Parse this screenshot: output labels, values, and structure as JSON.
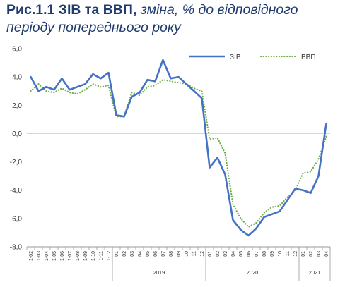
{
  "title": {
    "bold": "Рис.1.1 ЗІВ та ВВП,",
    "italic": " зміна, % до відповідного періоду попереднього року"
  },
  "colors": {
    "ziv": "#4472c4",
    "gdp": "#70ad47"
  },
  "chart_data": {
    "type": "line",
    "ylim": [
      -8,
      6
    ],
    "yticks": [
      "6,0",
      "4,0",
      "2,0",
      "0,0",
      "-2,0",
      "-4,0",
      "-6,0",
      "-8,0"
    ],
    "ytick_values": [
      6,
      4,
      2,
      0,
      -2,
      -4,
      -6,
      -8
    ],
    "grid": false,
    "legend": "top-right",
    "x": [
      "1-02",
      "1-03",
      "1-04",
      "1-05",
      "1-06",
      "1-07",
      "1-08",
      "1-09",
      "1-10",
      "1-11",
      "1-12",
      "01",
      "02",
      "03",
      "04",
      "05",
      "06",
      "07",
      "08",
      "09",
      "10",
      "11",
      "12",
      "01",
      "02",
      "03",
      "04",
      "05",
      "06",
      "07",
      "08",
      "09",
      "10",
      "11",
      "12",
      "01",
      "02",
      "03",
      "04"
    ],
    "x_groups": [
      {
        "label": "",
        "count": 11
      },
      {
        "label": "2019",
        "count": 12
      },
      {
        "label": "2020",
        "count": 12
      },
      {
        "label": "2021",
        "count": 4
      }
    ],
    "series": [
      {
        "name": "ЗІВ",
        "style": "solid",
        "values": [
          4.0,
          3.0,
          3.3,
          3.1,
          3.9,
          3.1,
          3.3,
          3.5,
          4.2,
          3.9,
          4.3,
          1.3,
          1.2,
          2.6,
          2.9,
          3.8,
          3.7,
          5.2,
          3.9,
          4.0,
          3.5,
          3.0,
          2.5,
          -2.4,
          -1.7,
          -2.9,
          -6.1,
          -6.8,
          -7.2,
          -6.7,
          -5.9,
          -5.7,
          -5.5,
          -4.7,
          -3.9,
          -4.0,
          -4.2,
          -3.0,
          0.7
        ]
      },
      {
        "name": "ВВП",
        "style": "dotted",
        "values": [
          3.0,
          3.5,
          3.0,
          2.9,
          3.2,
          2.9,
          2.8,
          3.1,
          3.5,
          3.3,
          3.4,
          1.2,
          1.2,
          2.9,
          2.7,
          3.3,
          3.4,
          3.8,
          3.7,
          3.6,
          3.5,
          3.2,
          3.0,
          -0.4,
          -0.3,
          -1.4,
          -5.0,
          -6.0,
          -6.6,
          -6.3,
          -5.6,
          -5.2,
          -5.1,
          -4.5,
          -4.0,
          -2.8,
          -2.7,
          -1.8,
          -0.2
        ]
      }
    ]
  }
}
